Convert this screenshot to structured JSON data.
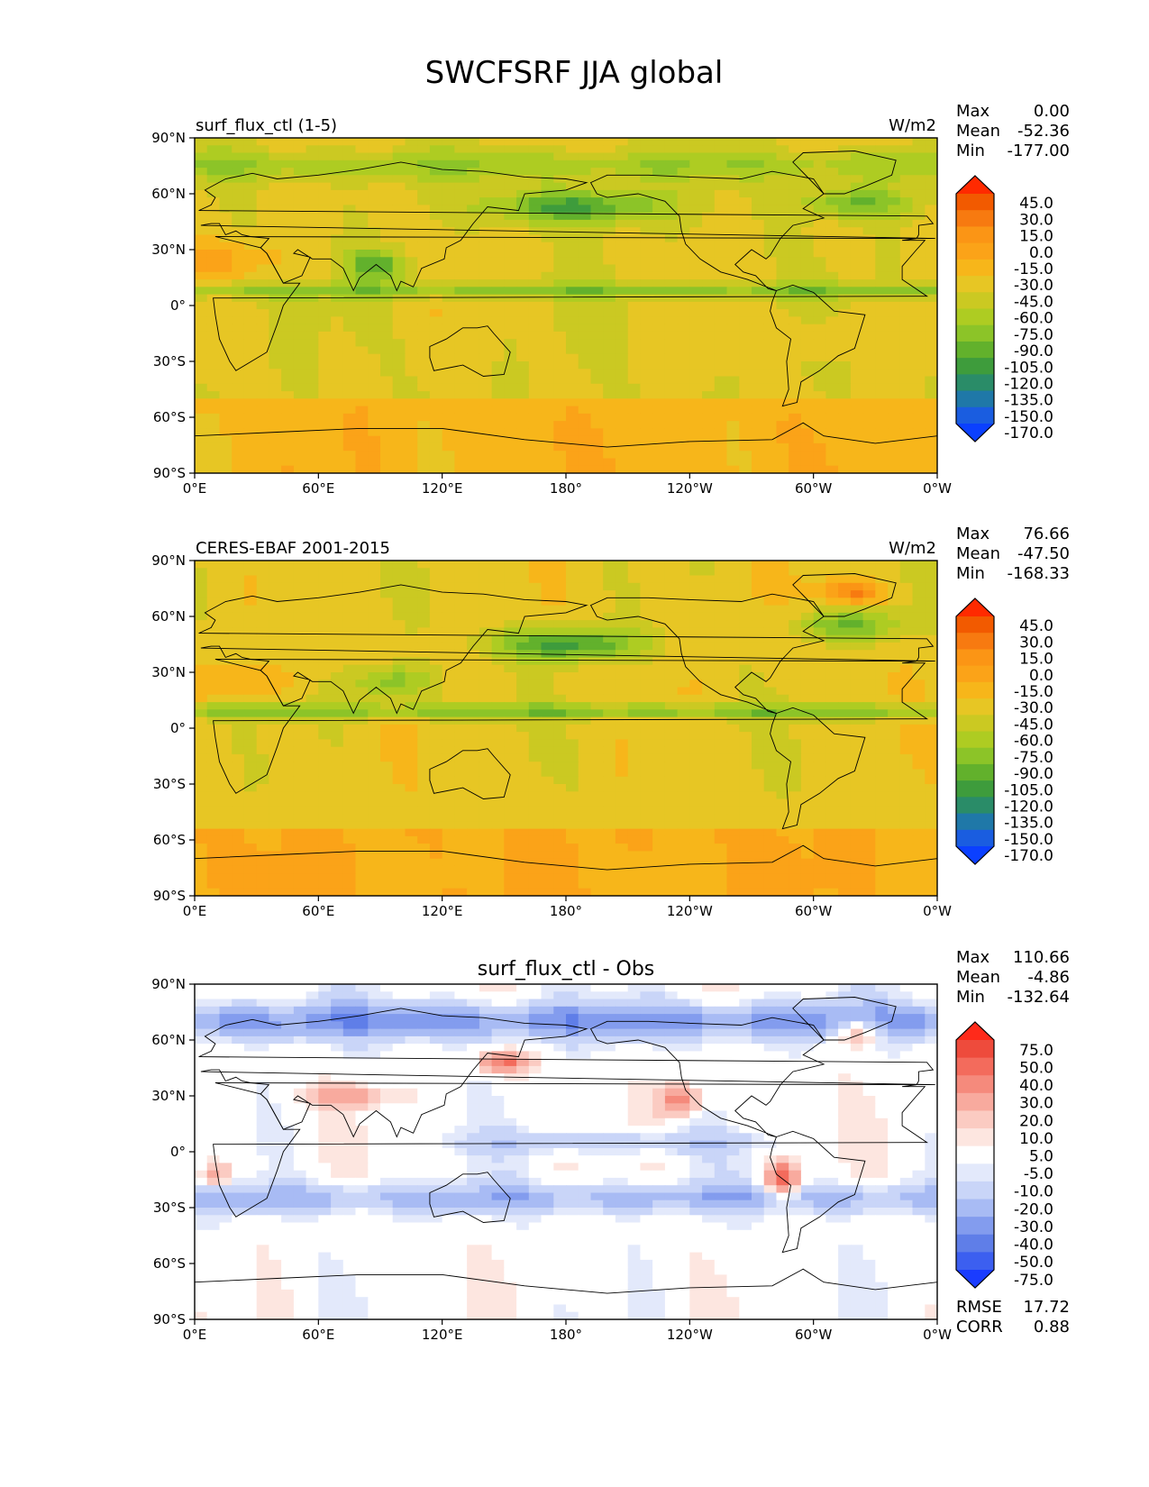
{
  "figure": {
    "title": "SWCFSRF JJA global"
  },
  "chart_data": [
    {
      "type": "heatmap",
      "title": "",
      "left_label": "surf_flux_ctl (1-5)",
      "units": "W/m2",
      "stats": {
        "max_label": "Max",
        "max": "0.00",
        "mean_label": "Mean",
        "mean": "-52.36",
        "min_label": "Min",
        "min": "-177.00"
      },
      "colorbar_levels": [
        "45.0",
        "30.0",
        "15.0",
        "0.0",
        "-15.0",
        "-30.0",
        "-45.0",
        "-60.0",
        "-75.0",
        "-90.0",
        "-105.0",
        "-120.0",
        "-135.0",
        "-150.0",
        "-170.0"
      ],
      "colorbar_colors": [
        "#ff2a00",
        "#f25a00",
        "#f77a10",
        "#fb9515",
        "#fba318",
        "#f7b61a",
        "#e7c624",
        "#cbc922",
        "#aecc22",
        "#8cc428",
        "#62b12c",
        "#3e9c3c",
        "#2a8c68",
        "#1f78a8",
        "#1a5de0",
        "#0b40ff"
      ],
      "xticks": [
        "0°E",
        "60°E",
        "120°E",
        "180°",
        "120°W",
        "60°W",
        "0°W"
      ],
      "yticks": [
        "90°N",
        "60°N",
        "30°N",
        "0°",
        "30°S",
        "60°S",
        "90°S"
      ],
      "xlim": [
        0,
        360
      ],
      "ylim": [
        -90,
        90
      ],
      "footer": []
    },
    {
      "type": "heatmap",
      "title": "",
      "left_label": "CERES-EBAF 2001-2015",
      "units": "W/m2",
      "stats": {
        "max_label": "Max",
        "max": "76.66",
        "mean_label": "Mean",
        "mean": "-47.50",
        "min_label": "Min",
        "min": "-168.33"
      },
      "colorbar_levels": [
        "45.0",
        "30.0",
        "15.0",
        "0.0",
        "-15.0",
        "-30.0",
        "-45.0",
        "-60.0",
        "-75.0",
        "-90.0",
        "-105.0",
        "-120.0",
        "-135.0",
        "-150.0",
        "-170.0"
      ],
      "colorbar_colors": [
        "#ff2a00",
        "#f25a00",
        "#f77a10",
        "#fb9515",
        "#fba318",
        "#f7b61a",
        "#e7c624",
        "#cbc922",
        "#aecc22",
        "#8cc428",
        "#62b12c",
        "#3e9c3c",
        "#2a8c68",
        "#1f78a8",
        "#1a5de0",
        "#0b40ff"
      ],
      "xticks": [
        "0°E",
        "60°E",
        "120°E",
        "180°",
        "120°W",
        "60°W",
        "0°W"
      ],
      "yticks": [
        "90°N",
        "60°N",
        "30°N",
        "0°",
        "30°S",
        "60°S",
        "90°S"
      ],
      "xlim": [
        0,
        360
      ],
      "ylim": [
        -90,
        90
      ],
      "footer": []
    },
    {
      "type": "heatmap",
      "title": "surf_flux_ctl - Obs",
      "left_label": "",
      "units": "",
      "stats": {
        "max_label": "Max",
        "max": "110.66",
        "mean_label": "Mean",
        "mean": "-4.86",
        "min_label": "Min",
        "min": "-132.64"
      },
      "colorbar_levels": [
        "75.0",
        "50.0",
        "40.0",
        "30.0",
        "20.0",
        "10.0",
        "5.0",
        "-5.0",
        "-10.0",
        "-20.0",
        "-30.0",
        "-40.0",
        "-50.0",
        "-75.0"
      ],
      "colorbar_colors": [
        "#ff2a1a",
        "#ee4b3c",
        "#f36b5c",
        "#f58a7c",
        "#f8aa9e",
        "#fbcbc2",
        "#fde6e0",
        "#ffffff",
        "#e3e9fb",
        "#c9d5f8",
        "#a8bbf4",
        "#839cee",
        "#5f7ee8",
        "#3c5ff0",
        "#1a3cff"
      ],
      "xticks": [
        "0°E",
        "60°E",
        "120°E",
        "180°",
        "120°W",
        "60°W",
        "0°W"
      ],
      "yticks": [
        "90°N",
        "60°N",
        "30°N",
        "0°",
        "30°S",
        "60°S",
        "90°S"
      ],
      "xlim": [
        0,
        360
      ],
      "ylim": [
        -90,
        90
      ],
      "footer": [
        {
          "label": "RMSE",
          "value": "17.72"
        },
        {
          "label": "CORR",
          "value": "0.88"
        }
      ]
    }
  ]
}
